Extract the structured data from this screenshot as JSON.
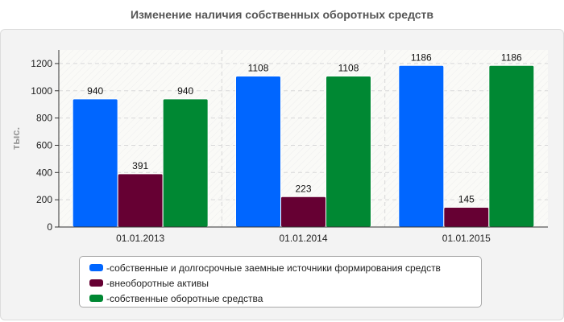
{
  "chart_data": {
    "type": "bar",
    "title": "Изменение наличия собственных оборотных средств",
    "ylabel": "тыс.",
    "xlabel": "",
    "ylim": [
      0,
      1300
    ],
    "yticks": [
      0,
      200,
      400,
      600,
      800,
      1000,
      1200
    ],
    "categories": [
      "01.01.2013",
      "01.01.2014",
      "01.01.2015"
    ],
    "series": [
      {
        "name": "собственные и долгосрочные заемные источники формирования средств",
        "values": [
          940,
          1108,
          1186
        ],
        "color": "#0066ff"
      },
      {
        "name": "внеоборотные активы",
        "values": [
          391,
          223,
          145
        ],
        "color": "#660033"
      },
      {
        "name": "собственные оборотные средства",
        "values": [
          940,
          1108,
          1186
        ],
        "color": "#008833"
      }
    ],
    "grid": true,
    "legend_position": "bottom",
    "legend_prefix": "- "
  }
}
